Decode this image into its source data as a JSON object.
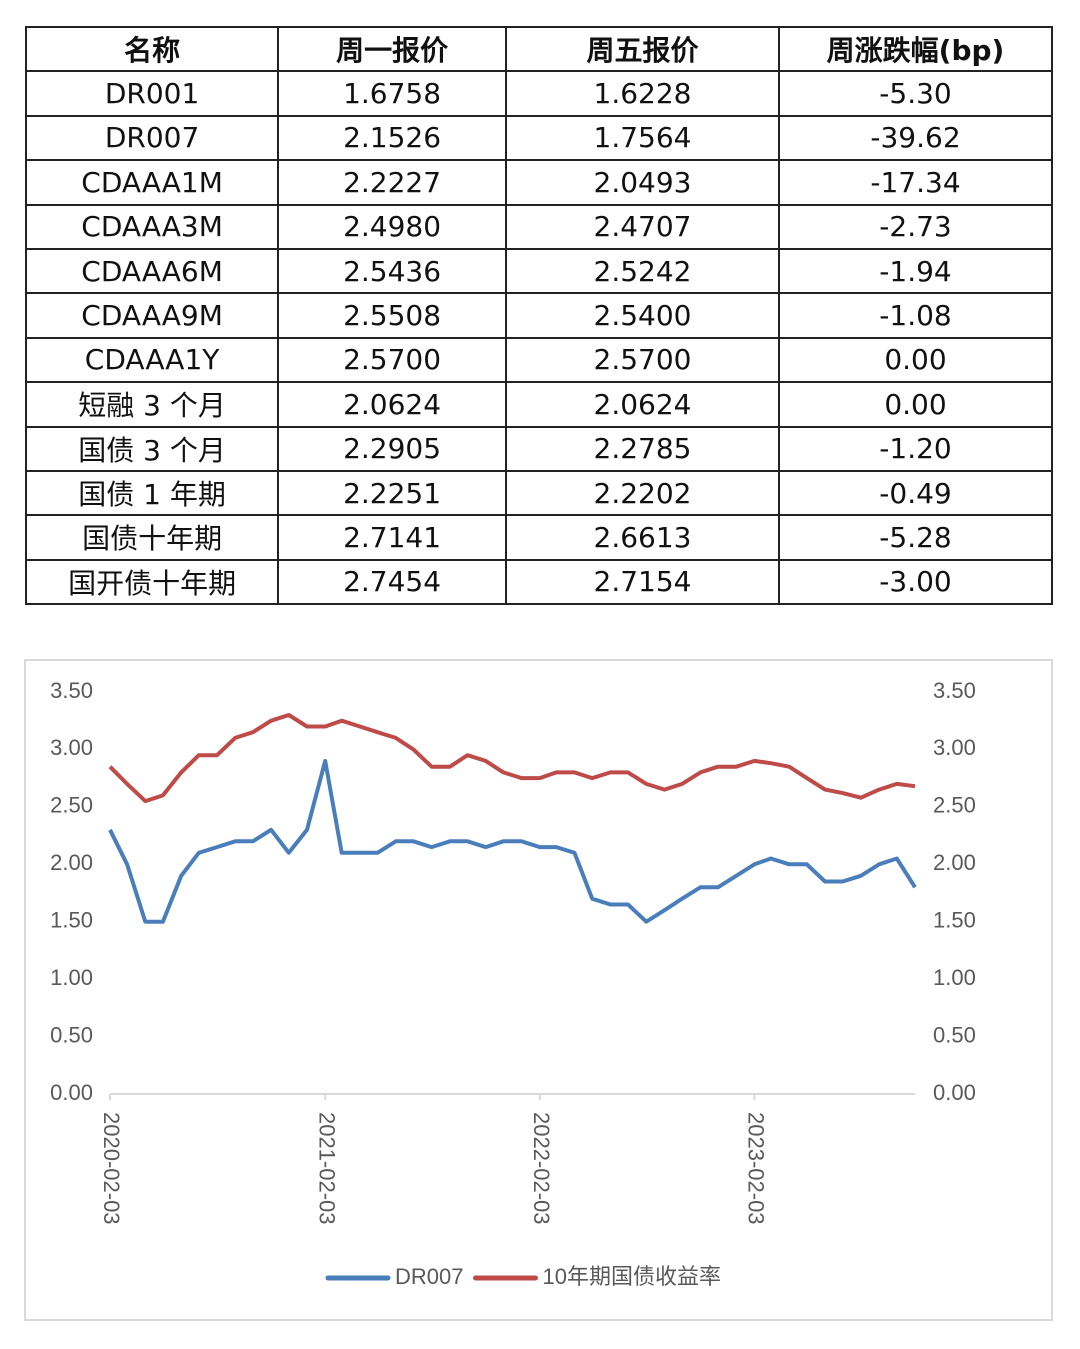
{
  "table": {
    "header": [
      "名称",
      "周一报价",
      "周五报价",
      "周涨跌幅(bp)"
    ],
    "rows": [
      [
        "DR001",
        "1.6758",
        "1.6228",
        "-5.30"
      ],
      [
        "DR007",
        "2.1526",
        "1.7564",
        "-39.62"
      ],
      [
        "CDAAA1M",
        "2.2227",
        "2.0493",
        "-17.34"
      ],
      [
        "CDAAA3M",
        "2.4980",
        "2.4707",
        "-2.73"
      ],
      [
        "CDAAA6M",
        "2.5436",
        "2.5242",
        "-1.94"
      ],
      [
        "CDAAA9M",
        "2.5508",
        "2.5400",
        "-1.08"
      ],
      [
        "CDAAA1Y",
        "2.5700",
        "2.5700",
        "0.00"
      ],
      [
        "短融 3 个月",
        "2.0624",
        "2.0624",
        "0.00"
      ],
      [
        "国债 3 个月",
        "2.2905",
        "2.2785",
        "-1.20"
      ],
      [
        "国债 1 年期",
        "2.2251",
        "2.2202",
        "-0.49"
      ],
      [
        "国债十年期",
        "2.7141",
        "2.6613",
        "-5.28"
      ],
      [
        "国开债十年期",
        "2.7454",
        "2.7154",
        "-3.00"
      ]
    ]
  },
  "chart_data": {
    "type": "line",
    "x": [
      "2020-02-03",
      "2020-03-03",
      "2020-04-03",
      "2020-05-03",
      "2020-06-03",
      "2020-07-03",
      "2020-08-03",
      "2020-09-03",
      "2020-10-03",
      "2020-11-03",
      "2020-12-03",
      "2021-01-03",
      "2021-02-03",
      "2021-03-03",
      "2021-04-03",
      "2021-05-03",
      "2021-06-03",
      "2021-07-03",
      "2021-08-03",
      "2021-09-03",
      "2021-10-03",
      "2021-11-03",
      "2021-12-03",
      "2022-01-03",
      "2022-02-03",
      "2022-03-03",
      "2022-04-03",
      "2022-05-03",
      "2022-06-03",
      "2022-07-03",
      "2022-08-03",
      "2022-09-03",
      "2022-10-03",
      "2022-11-03",
      "2022-12-03",
      "2023-01-03",
      "2023-02-03",
      "2023-03-03",
      "2023-04-03",
      "2023-05-03",
      "2023-06-03",
      "2023-07-03",
      "2023-08-03",
      "2023-09-03",
      "2023-10-03",
      "2023-11-03"
    ],
    "series": [
      {
        "name": "DR007",
        "color": "#4a7ebb",
        "values": [
          2.3,
          2.0,
          1.5,
          1.5,
          1.9,
          2.1,
          2.15,
          2.2,
          2.2,
          2.3,
          2.1,
          2.3,
          2.9,
          2.1,
          2.1,
          2.1,
          2.2,
          2.2,
          2.15,
          2.2,
          2.2,
          2.15,
          2.2,
          2.2,
          2.15,
          2.15,
          2.1,
          1.7,
          1.65,
          1.65,
          1.5,
          1.6,
          1.7,
          1.8,
          1.8,
          1.9,
          2.0,
          2.05,
          2.0,
          2.0,
          1.85,
          1.85,
          1.9,
          2.0,
          2.05,
          1.8
        ]
      },
      {
        "name": "10年期国债收益率",
        "color": "#be4b48",
        "axis": "y2",
        "values": [
          2.85,
          2.7,
          2.55,
          2.6,
          2.8,
          2.95,
          2.95,
          3.1,
          3.15,
          3.25,
          3.3,
          3.2,
          3.2,
          3.25,
          3.2,
          3.15,
          3.1,
          3.0,
          2.85,
          2.85,
          2.95,
          2.9,
          2.8,
          2.75,
          2.75,
          2.8,
          2.8,
          2.75,
          2.8,
          2.8,
          2.7,
          2.65,
          2.7,
          2.8,
          2.85,
          2.85,
          2.9,
          2.88,
          2.85,
          2.75,
          2.65,
          2.62,
          2.58,
          2.65,
          2.7,
          2.68
        ]
      }
    ],
    "xlim": [
      "2020-02-03",
      "2023-11-03"
    ],
    "xticks": [
      "2020-02-03",
      "2021-02-03",
      "2022-02-03",
      "2023-02-03"
    ],
    "ylim": [
      0,
      3.5
    ],
    "yticks": [
      {
        "value": 0,
        "label": "0.00"
      },
      {
        "value": 0.5,
        "label": "0.50"
      },
      {
        "value": 1,
        "label": "1.00"
      },
      {
        "value": 1.5,
        "label": "1.50"
      },
      {
        "value": 2,
        "label": "2.00"
      },
      {
        "value": 2.5,
        "label": "2.50"
      },
      {
        "value": 3,
        "label": "3.00"
      },
      {
        "value": 3.5,
        "label": "3.50"
      }
    ],
    "y2lim": [
      0,
      3.5
    ],
    "y2ticks": [
      {
        "value": 0,
        "label": "0.00"
      },
      {
        "value": 0.5,
        "label": "0.50"
      },
      {
        "value": 1,
        "label": "1.00"
      },
      {
        "value": 1.5,
        "label": "1.50"
      },
      {
        "value": 2,
        "label": "2.00"
      },
      {
        "value": 2.5,
        "label": "2.50"
      },
      {
        "value": 3,
        "label": "3.00"
      },
      {
        "value": 3.5,
        "label": "3.50"
      }
    ],
    "legend": "bottom"
  }
}
